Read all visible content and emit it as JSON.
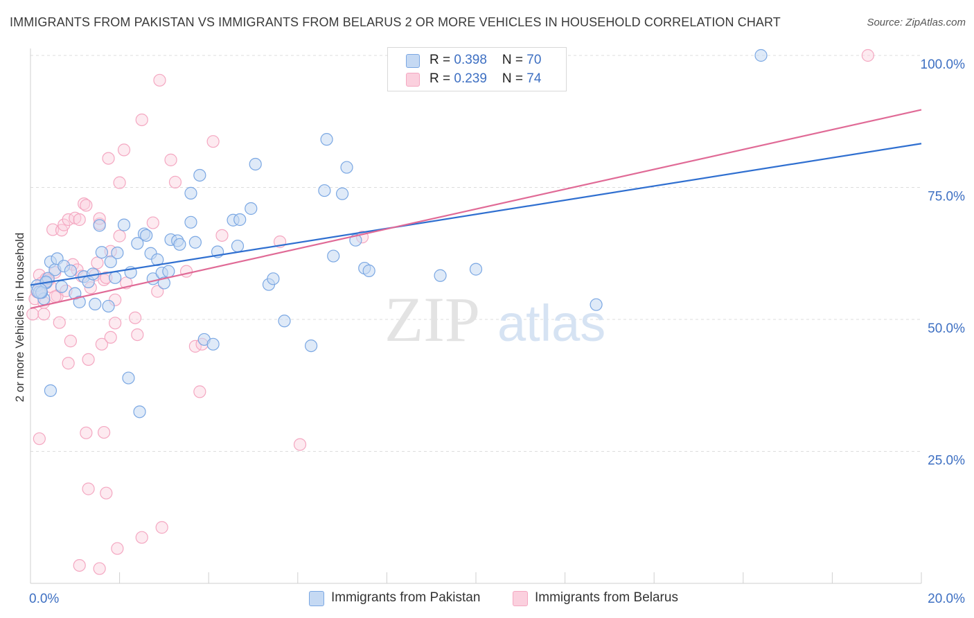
{
  "title": "IMMIGRANTS FROM PAKISTAN VS IMMIGRANTS FROM BELARUS 2 OR MORE VEHICLES IN HOUSEHOLD CORRELATION CHART",
  "source": "Source: ZipAtlas.com",
  "watermark": {
    "zip": "ZIP",
    "atlas": "atlas"
  },
  "legend": {
    "rows": [
      {
        "r_label": "R = ",
        "r_value": "0.398",
        "n_label": "N = ",
        "n_value": "70"
      },
      {
        "r_label": "R = ",
        "r_value": "0.239",
        "n_label": "N = ",
        "n_value": "74"
      }
    ]
  },
  "chart_data": {
    "type": "scatter",
    "title": "IMMIGRANTS FROM PAKISTAN VS IMMIGRANTS FROM BELARUS 2 OR MORE VEHICLES IN HOUSEHOLD CORRELATION CHART",
    "xlabel": "",
    "ylabel": "2 or more Vehicles in Household",
    "xlim": [
      0,
      20
    ],
    "ylim": [
      0,
      100
    ],
    "x_tick_labels": [
      {
        "x": 0,
        "label": "0.0%"
      },
      {
        "x": 20,
        "label": "20.0%"
      }
    ],
    "y_tick_labels": [
      {
        "y": 25,
        "label": "25.0%"
      },
      {
        "y": 50,
        "label": "50.0%"
      },
      {
        "y": 75,
        "label": "75.0%"
      },
      {
        "y": 100,
        "label": "100.0%"
      }
    ],
    "grid": true,
    "colors": {
      "pakistan": "#7aa7e3",
      "pakistan_line": "#2f6fd0",
      "belarus": "#f4a7c1",
      "belarus_line": "#e06a96",
      "axis_text": "#3d6fc2"
    },
    "series": [
      {
        "name": "Immigrants from Pakistan",
        "R": 0.398,
        "N": 70,
        "trend": {
          "x0": 0,
          "y0": 56.5,
          "x1": 20,
          "y1": 83.3
        },
        "points": [
          [
            0.15,
            56.4
          ],
          [
            0.2,
            55.2
          ],
          [
            0.3,
            53.9
          ],
          [
            0.35,
            56.9
          ],
          [
            0.4,
            57.8
          ],
          [
            0.45,
            60.9
          ],
          [
            0.55,
            59.4
          ],
          [
            0.6,
            61.5
          ],
          [
            0.7,
            56.2
          ],
          [
            0.75,
            60.1
          ],
          [
            0.9,
            59.2
          ],
          [
            1.0,
            54.9
          ],
          [
            1.1,
            53.3
          ],
          [
            1.2,
            58.1
          ],
          [
            1.3,
            57.1
          ],
          [
            1.4,
            58.6
          ],
          [
            1.45,
            52.9
          ],
          [
            1.55,
            67.8
          ],
          [
            1.6,
            62.7
          ],
          [
            1.75,
            52.5
          ],
          [
            1.8,
            60.9
          ],
          [
            1.9,
            57.9
          ],
          [
            1.95,
            62.6
          ],
          [
            2.1,
            67.9
          ],
          [
            2.25,
            58.9
          ],
          [
            2.4,
            64.4
          ],
          [
            2.55,
            66.2
          ],
          [
            2.6,
            65.9
          ],
          [
            2.7,
            62.5
          ],
          [
            2.75,
            57.7
          ],
          [
            2.85,
            61.3
          ],
          [
            2.95,
            58.8
          ],
          [
            3.0,
            56.9
          ],
          [
            3.1,
            59.1
          ],
          [
            3.15,
            65.1
          ],
          [
            3.3,
            64.9
          ],
          [
            3.35,
            64.2
          ],
          [
            3.6,
            68.4
          ],
          [
            3.7,
            64.6
          ],
          [
            3.6,
            73.9
          ],
          [
            3.8,
            77.3
          ],
          [
            3.9,
            46.2
          ],
          [
            4.1,
            45.3
          ],
          [
            4.2,
            62.8
          ],
          [
            4.55,
            68.8
          ],
          [
            4.65,
            63.9
          ],
          [
            4.7,
            68.9
          ],
          [
            4.95,
            71.0
          ],
          [
            5.05,
            79.4
          ],
          [
            5.35,
            56.6
          ],
          [
            5.45,
            57.7
          ],
          [
            5.7,
            49.7
          ],
          [
            6.3,
            45.0
          ],
          [
            6.6,
            74.4
          ],
          [
            6.65,
            84.1
          ],
          [
            6.8,
            62.0
          ],
          [
            7.0,
            73.8
          ],
          [
            7.1,
            78.8
          ],
          [
            7.3,
            65.0
          ],
          [
            7.5,
            59.7
          ],
          [
            7.6,
            59.2
          ],
          [
            9.2,
            58.3
          ],
          [
            10.0,
            59.5
          ],
          [
            12.7,
            52.8
          ],
          [
            16.4,
            100.0
          ],
          [
            2.2,
            38.9
          ],
          [
            2.45,
            32.5
          ],
          [
            0.45,
            36.5
          ],
          [
            0.25,
            55.1
          ],
          [
            0.35,
            57.1
          ]
        ]
      },
      {
        "name": "Immigrants from Belarus",
        "R": 0.239,
        "N": 74,
        "trend": {
          "x0": 0,
          "y0": 52.1,
          "x1": 20,
          "y1": 89.7
        },
        "points": [
          [
            0.05,
            51.0
          ],
          [
            0.1,
            53.9
          ],
          [
            0.15,
            55.2
          ],
          [
            0.2,
            58.4
          ],
          [
            0.3,
            51.0
          ],
          [
            0.35,
            57.7
          ],
          [
            0.45,
            56.2
          ],
          [
            0.5,
            67.0
          ],
          [
            0.55,
            58.9
          ],
          [
            0.6,
            54.4
          ],
          [
            0.65,
            49.4
          ],
          [
            0.7,
            66.9
          ],
          [
            0.75,
            67.9
          ],
          [
            0.8,
            55.4
          ],
          [
            0.85,
            68.9
          ],
          [
            0.9,
            45.9
          ],
          [
            0.95,
            60.4
          ],
          [
            1.0,
            69.2
          ],
          [
            1.05,
            59.4
          ],
          [
            1.1,
            68.9
          ],
          [
            1.15,
            58.2
          ],
          [
            1.2,
            71.9
          ],
          [
            1.25,
            71.6
          ],
          [
            1.3,
            42.4
          ],
          [
            1.35,
            56.0
          ],
          [
            1.45,
            58.4
          ],
          [
            1.55,
            68.1
          ],
          [
            1.55,
            69.1
          ],
          [
            1.6,
            45.3
          ],
          [
            1.65,
            57.5
          ],
          [
            1.7,
            57.9
          ],
          [
            1.75,
            80.5
          ],
          [
            1.8,
            46.6
          ],
          [
            1.8,
            62.9
          ],
          [
            1.9,
            53.7
          ],
          [
            1.9,
            49.3
          ],
          [
            2.0,
            75.9
          ],
          [
            2.1,
            82.1
          ],
          [
            2.15,
            56.9
          ],
          [
            2.35,
            50.3
          ],
          [
            2.4,
            47.1
          ],
          [
            2.5,
            87.8
          ],
          [
            2.75,
            68.3
          ],
          [
            2.85,
            55.3
          ],
          [
            2.9,
            95.3
          ],
          [
            3.15,
            80.2
          ],
          [
            3.25,
            76.0
          ],
          [
            3.5,
            59.1
          ],
          [
            3.7,
            44.9
          ],
          [
            3.8,
            36.3
          ],
          [
            3.85,
            45.3
          ],
          [
            4.1,
            83.7
          ],
          [
            4.3,
            65.9
          ],
          [
            5.6,
            64.7
          ],
          [
            6.05,
            26.3
          ],
          [
            7.45,
            65.6
          ],
          [
            18.8,
            100.0
          ],
          [
            0.2,
            27.4
          ],
          [
            1.25,
            28.5
          ],
          [
            1.65,
            28.6
          ],
          [
            1.3,
            17.9
          ],
          [
            1.7,
            17.1
          ],
          [
            1.55,
            2.8
          ],
          [
            1.95,
            6.6
          ],
          [
            2.5,
            8.7
          ],
          [
            2.95,
            10.6
          ],
          [
            1.1,
            3.4
          ],
          [
            0.85,
            41.7
          ],
          [
            0.3,
            53.2
          ],
          [
            0.4,
            57.4
          ],
          [
            0.25,
            56.9
          ],
          [
            0.55,
            54.3
          ],
          [
            2.0,
            65.8
          ],
          [
            1.5,
            60.7
          ]
        ]
      }
    ]
  },
  "bottom_legend": [
    {
      "label": "Immigrants from Pakistan"
    },
    {
      "label": "Immigrants from Belarus"
    }
  ]
}
